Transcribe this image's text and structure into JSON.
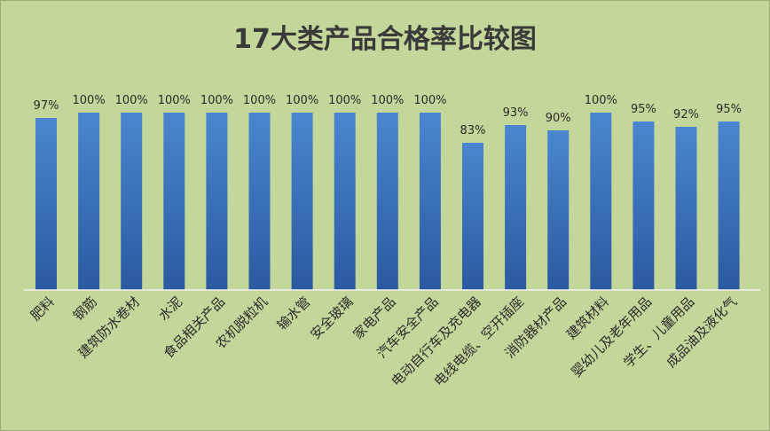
{
  "chart_data": {
    "type": "bar",
    "title": "17大类产品合格率比较图",
    "categories": [
      "肥料",
      "钢筋",
      "建筑防水卷材",
      "水泥",
      "食品相关产品",
      "农机脱粒机",
      "输水管",
      "安全玻璃",
      "家电产品",
      "汽车安全产品",
      "电动自行车及充电器",
      "电线电缆、空开插座",
      "消防器材产品",
      "建筑材料",
      "婴幼儿及老年用品",
      "学生、儿童用品",
      "成品油及液化气"
    ],
    "values": [
      97,
      100,
      100,
      100,
      100,
      100,
      100,
      100,
      100,
      100,
      83,
      93,
      90,
      100,
      95,
      92,
      95
    ],
    "data_labels": [
      "97%",
      "100%",
      "100%",
      "100%",
      "100%",
      "100%",
      "100%",
      "100%",
      "100%",
      "100%",
      "83%",
      "93%",
      "90%",
      "100%",
      "95%",
      "92%",
      "95%"
    ],
    "ylim": [
      0,
      100
    ],
    "grid": false,
    "legend": "none",
    "colors": {
      "bar_top": "#4a86cf",
      "bar_bottom": "#2a5aa0",
      "background": "#c4d79b",
      "axis": "#f2f2f2"
    }
  }
}
